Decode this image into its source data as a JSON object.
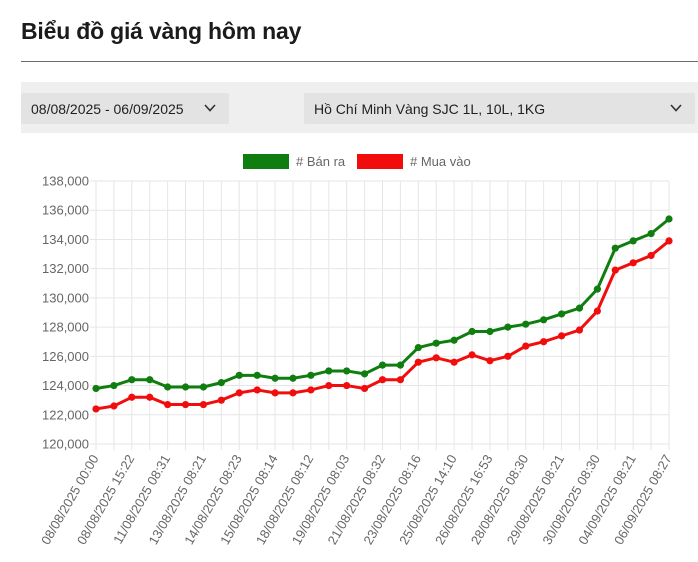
{
  "page": {
    "title": "Biểu đồ giá vàng hôm nay"
  },
  "filters": {
    "date_range": "08/08/2025 - 06/09/2025",
    "location_product": "Hồ Chí Minh Vàng SJC 1L, 10L, 1KG"
  },
  "colors": {
    "ban_ra": "#0f7d0f",
    "mua_vao": "#f20d0d",
    "grid": "#e6e6e6",
    "tick_text": "#666666"
  },
  "chart_data": {
    "type": "line",
    "title": "",
    "xlabel": "",
    "ylabel": "",
    "ylim": [
      120000,
      138000
    ],
    "y_ticks": [
      "120,000",
      "122,000",
      "124,000",
      "126,000",
      "128,000",
      "130,000",
      "132,000",
      "134,000",
      "136,000",
      "138,000"
    ],
    "grid": true,
    "legend_position": "top-center",
    "x_ticks": [
      "08/08/2025 00:00",
      "08/08/2025 15:22",
      "11/08/2025 08:31",
      "13/08/2025 08:21",
      "14/08/2025 08:23",
      "15/08/2025 08:14",
      "18/08/2025 08:12",
      "19/08/2025 08:03",
      "21/08/2025 08:32",
      "23/08/2025 08:16",
      "25/08/2025 14:10",
      "26/08/2025 16:53",
      "28/08/2025 08:30",
      "29/08/2025 08:21",
      "30/08/2025 08:30",
      "04/09/2025 08:21",
      "06/09/2025 08:27"
    ],
    "point_count": 33,
    "series": [
      {
        "name": "# Bán ra",
        "color": "#0f7d0f",
        "values": [
          123800,
          124000,
          124400,
          124400,
          123900,
          123900,
          123900,
          124200,
          124700,
          124700,
          124500,
          124500,
          124700,
          125000,
          125000,
          124800,
          125400,
          125400,
          126600,
          126900,
          127100,
          127700,
          127700,
          128000,
          128200,
          128500,
          128900,
          129300,
          130600,
          133400,
          133900,
          134400,
          135400
        ]
      },
      {
        "name": "# Mua vào",
        "color": "#f20d0d",
        "values": [
          122400,
          122600,
          123200,
          123200,
          122700,
          122700,
          122700,
          123000,
          123500,
          123700,
          123500,
          123500,
          123700,
          124000,
          124000,
          123800,
          124400,
          124400,
          125600,
          125900,
          125600,
          126100,
          125700,
          126000,
          126700,
          127000,
          127400,
          127800,
          129100,
          131900,
          132400,
          132900,
          133900
        ]
      }
    ]
  }
}
